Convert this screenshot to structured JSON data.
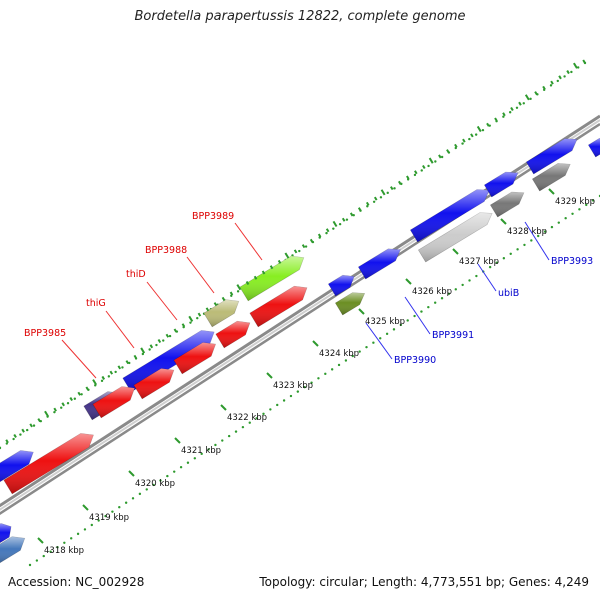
{
  "header": {
    "title": "Bordetella parapertussis 12822, complete genome"
  },
  "footer": {
    "accession": "Accession: NC_002928",
    "stats": "Topology: circular; Length: 4,773,551 bp; Genes: 4,249"
  },
  "colors": {
    "dots": "#2e9a2e",
    "backbone": "#8a8a8a",
    "gene_label_red": "#dd0000",
    "gene_label_blue": "#0000cc",
    "leader_red": "#ee3333",
    "leader_blue": "#3333ee"
  },
  "scale": {
    "unit": "kbp",
    "ticks": [
      {
        "label": "4318 kbp"
      },
      {
        "label": "4319 kbp"
      },
      {
        "label": "4320 kbp"
      },
      {
        "label": "4321 kbp"
      },
      {
        "label": "4322 kbp"
      },
      {
        "label": "4323 kbp"
      },
      {
        "label": "4324 kbp"
      },
      {
        "label": "4325 kbp"
      },
      {
        "label": "4326 kbp"
      },
      {
        "label": "4327 kbp"
      },
      {
        "label": "4328 kbp"
      },
      {
        "label": "4329 kbp"
      }
    ]
  },
  "features": [
    {
      "track": "outer",
      "color": "#4477bb"
    },
    {
      "track": "outer",
      "color": "#1111ee"
    },
    {
      "track": "outer",
      "color": "#1111ee"
    },
    {
      "track": "outer",
      "color": "#443388"
    },
    {
      "track": "outer",
      "color": "#1111ee"
    },
    {
      "track": "outer",
      "color": "#bbbb77"
    },
    {
      "track": "outer",
      "color": "#88ee22"
    },
    {
      "track": "inner",
      "color": "#ee1111"
    },
    {
      "track": "inner",
      "color": "#ee1111"
    },
    {
      "track": "inner",
      "color": "#ee1111"
    },
    {
      "track": "inner",
      "color": "#ee1111"
    },
    {
      "track": "inner",
      "color": "#ee1111"
    },
    {
      "track": "inner",
      "color": "#ee1111"
    },
    {
      "track": "outer",
      "color": "#1111ee"
    },
    {
      "track": "inner",
      "color": "#6b8e23"
    },
    {
      "track": "outer",
      "color": "#1111ee"
    },
    {
      "track": "outer",
      "color": "#1111ee"
    },
    {
      "track": "inner",
      "color": "#cccccc"
    },
    {
      "track": "outer",
      "color": "#1111ee"
    },
    {
      "track": "inner",
      "color": "#777777"
    },
    {
      "track": "outer",
      "color": "#777777"
    },
    {
      "track": "outer",
      "color": "#1111ee"
    },
    {
      "track": "outer",
      "color": "#1111ee"
    }
  ],
  "gene_labels": [
    {
      "text": "BPP3985",
      "color": "red"
    },
    {
      "text": "thiG",
      "color": "red"
    },
    {
      "text": "thiD",
      "color": "red"
    },
    {
      "text": "BPP3988",
      "color": "red"
    },
    {
      "text": "BPP3989",
      "color": "red"
    },
    {
      "text": "BPP3990",
      "color": "blue"
    },
    {
      "text": "BPP3991",
      "color": "blue"
    },
    {
      "text": "ubiB",
      "color": "blue"
    },
    {
      "text": "BPP3993",
      "color": "blue"
    }
  ]
}
